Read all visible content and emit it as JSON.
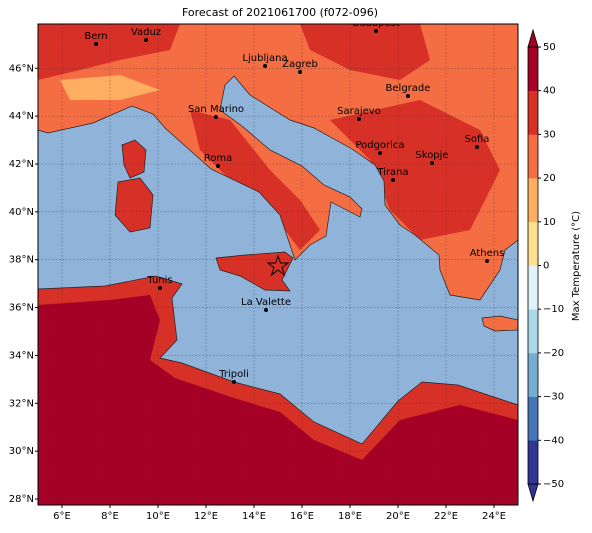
{
  "title": "Forecast of 2021061700 (f072-096)",
  "map": {
    "xlim": [
      5,
      25
    ],
    "ylim": [
      27.75,
      47.85
    ],
    "xticks": [
      {
        "value": 6,
        "label": "6°E"
      },
      {
        "value": 8,
        "label": "8°E"
      },
      {
        "value": 10,
        "label": "10°E"
      },
      {
        "value": 12,
        "label": "12°E"
      },
      {
        "value": 14,
        "label": "14°E"
      },
      {
        "value": 16,
        "label": "16°E"
      },
      {
        "value": 18,
        "label": "18°E"
      },
      {
        "value": 20,
        "label": "20°E"
      },
      {
        "value": 22,
        "label": "22°E"
      },
      {
        "value": 24,
        "label": "24°E"
      }
    ],
    "yticks": [
      {
        "value": 28,
        "label": "28°N"
      },
      {
        "value": 30,
        "label": "30°N"
      },
      {
        "value": 32,
        "label": "32°N"
      },
      {
        "value": 34,
        "label": "34°N"
      },
      {
        "value": 36,
        "label": "36°N"
      },
      {
        "value": 38,
        "label": "38°N"
      },
      {
        "value": 40,
        "label": "40°N"
      },
      {
        "value": 42,
        "label": "42°N"
      },
      {
        "value": 44,
        "label": "44°N"
      },
      {
        "value": 46,
        "label": "46°N"
      }
    ],
    "grid": true,
    "cities": [
      "Bern",
      "Vaduz",
      "Budapest",
      "Ljubljana",
      "Zagreb",
      "Belgrade",
      "San Marino",
      "Sarajevo",
      "Sofia",
      "Podgorica",
      "Skopje",
      "Roma",
      "Tirana",
      "Athens",
      "Tunis",
      "La Valette",
      "Tripoli"
    ]
  },
  "colorbar": {
    "label": "Max Temperature (°C)",
    "lim": [
      -50,
      50
    ],
    "ticks": [
      {
        "value": -50,
        "label": "−50"
      },
      {
        "value": -40,
        "label": "−40"
      },
      {
        "value": -30,
        "label": "−30"
      },
      {
        "value": -20,
        "label": "−20"
      },
      {
        "value": -10,
        "label": "−10"
      },
      0,
      10,
      20,
      30,
      40,
      50
    ],
    "colors": [
      "#313695",
      "#4575b4",
      "#74add1",
      "#abd9e9",
      "#e0f3f8",
      "#fee090",
      "#fdae61",
      "#f46d43",
      "#d73027",
      "#a50026"
    ]
  }
}
